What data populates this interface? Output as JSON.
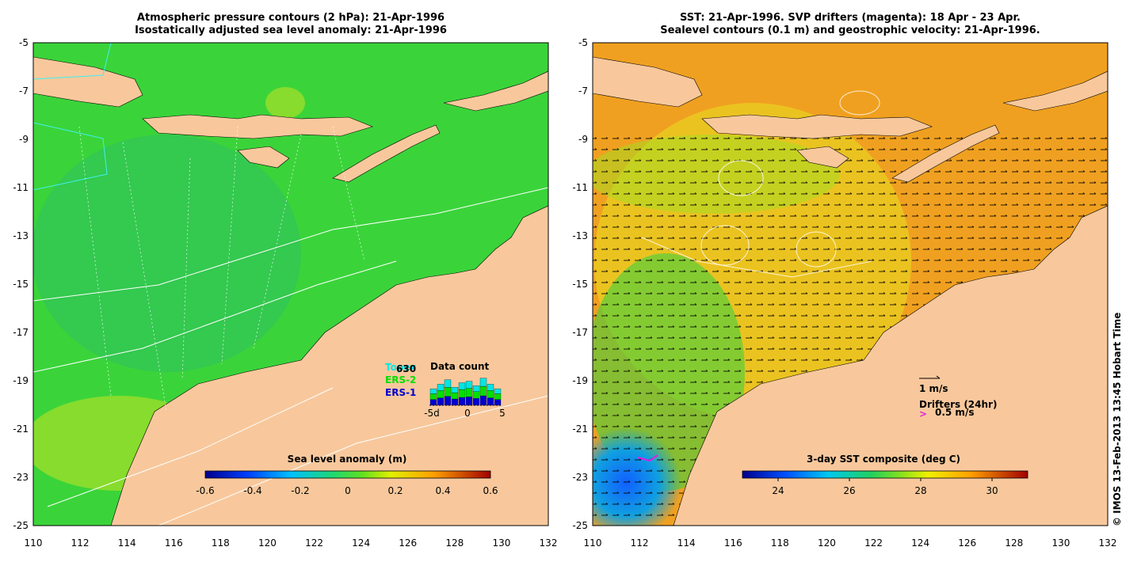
{
  "left_panel": {
    "title_line1": "Atmospheric pressure contours (2 hPa): 21-Apr-1996",
    "title_line2": "Isostatically adjusted sea level anomaly: 21-Apr-1996",
    "legend": {
      "data_count_label": "Data count",
      "count_value": "630",
      "sat1": "Topex",
      "sat2": "ERS-2",
      "sat3": "ERS-1",
      "axis_ticks": [
        "-5d",
        "0",
        "5"
      ],
      "sat_colors": [
        "#00e5e5",
        "#00e000",
        "#0000d0"
      ]
    },
    "colorbar": {
      "label": "Sea level anomaly (m)",
      "ticks": [
        "-0.6",
        "-0.4",
        "-0.2",
        "0",
        "0.2",
        "0.4",
        "0.6"
      ]
    }
  },
  "right_panel": {
    "title_line1": "SST: 21-Apr-1996. SVP drifters (magenta): 18 Apr - 23 Apr.",
    "title_line2": "Sealevel contours (0.1 m) and geostrophic velocity: 21-Apr-1996.",
    "scale_label": "1 m/s",
    "drifters_label": "Drifters (24hr)",
    "drifter_speed": "0.5 m/s",
    "colorbar": {
      "label": "3-day SST composite (deg C)",
      "ticks": [
        "24",
        "26",
        "28",
        "30"
      ]
    }
  },
  "axes": {
    "lat_ticks": [
      "-5",
      "-7",
      "-9",
      "-11",
      "-13",
      "-15",
      "-17",
      "-19",
      "-21",
      "-23",
      "-25"
    ],
    "lon_ticks": [
      "110",
      "112",
      "114",
      "116",
      "118",
      "120",
      "122",
      "124",
      "126",
      "128",
      "130",
      "132"
    ]
  },
  "credit": "© IMOS 13-Feb-2013 13:45 Hobart Time",
  "colors": {
    "land": "#f8c89c",
    "ocean_left": "#3ad43a",
    "ocean_right": "#f0a020"
  }
}
